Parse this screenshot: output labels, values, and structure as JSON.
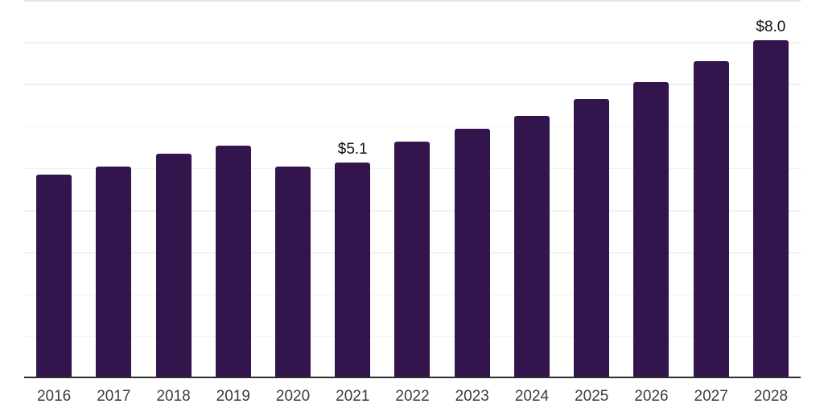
{
  "chart_data": {
    "type": "bar",
    "title": "",
    "xlabel": "",
    "ylabel": "",
    "categories": [
      "2016",
      "2017",
      "2018",
      "2019",
      "2020",
      "2021",
      "2022",
      "2023",
      "2024",
      "2025",
      "2026",
      "2027",
      "2028"
    ],
    "values": [
      4.8,
      5.0,
      5.3,
      5.5,
      5.0,
      5.1,
      5.6,
      5.9,
      6.2,
      6.6,
      7.0,
      7.5,
      8.0
    ],
    "data_labels": [
      {
        "category": "2021",
        "text": "$5.1"
      },
      {
        "category": "2028",
        "text": "$8.0"
      }
    ],
    "ylim": [
      0,
      9
    ],
    "gridline_interval": 1,
    "grid": "horizontal",
    "legend": "none",
    "colors": {
      "bar": "#33154D",
      "axis_line": "#2e2e2e",
      "gridline": "#f1f1f1",
      "top_gridline": "#e6e6e6",
      "tick_label": "#3c3c3c",
      "data_label": "#111111",
      "background": "#ffffff"
    }
  }
}
